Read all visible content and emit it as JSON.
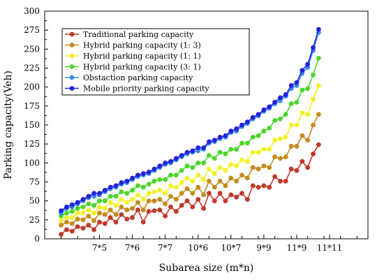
{
  "chart_data": {
    "type": "line",
    "xlabel": "Subarea size (m*n)",
    "ylabel": "Parking capacity(Veh)",
    "ylim": [
      0,
      300
    ],
    "yticks": [
      0,
      25,
      50,
      75,
      100,
      125,
      150,
      175,
      200,
      225,
      250,
      275,
      300
    ],
    "x_tick_labels": [
      "7*5",
      "7*6",
      "7*7",
      "10*6",
      "10*7",
      "9*9",
      "11*9",
      "11*11"
    ],
    "x_tick_positions": [
      7,
      13,
      19,
      25,
      31,
      37,
      43,
      49
    ],
    "x_range": [
      -3,
      56
    ],
    "legend_position": "top-left",
    "grid": false,
    "series": [
      {
        "name": "Traditional parking capacity",
        "color": "#c0392b",
        "values": [
          6,
          12,
          10,
          16,
          14,
          18,
          12,
          22,
          20,
          28,
          22,
          32,
          26,
          28,
          38,
          22,
          36,
          37,
          38,
          30,
          42,
          36,
          44,
          50,
          42,
          52,
          40,
          60,
          50,
          60,
          50,
          58,
          55,
          60,
          52,
          70,
          68,
          70,
          68,
          82,
          76,
          76,
          92,
          90,
          102,
          94,
          112,
          124
        ]
      },
      {
        "name": "Hybrid parking capacity (1: 3)",
        "color": "#c68a1e",
        "values": [
          18,
          22,
          20,
          26,
          25,
          30,
          24,
          34,
          32,
          38,
          32,
          42,
          38,
          40,
          48,
          38,
          50,
          50,
          52,
          46,
          56,
          52,
          60,
          66,
          60,
          68,
          58,
          76,
          68,
          76,
          70,
          80,
          76,
          84,
          80,
          94,
          92,
          96,
          94,
          108,
          106,
          108,
          122,
          122,
          136,
          130,
          150,
          164
        ]
      },
      {
        "name": "Hybrid parking capacity (1: 1)",
        "color": "#f1f12a",
        "values": [
          24,
          28,
          28,
          34,
          34,
          38,
          34,
          42,
          40,
          48,
          44,
          52,
          48,
          52,
          58,
          52,
          60,
          62,
          64,
          60,
          70,
          68,
          74,
          80,
          76,
          84,
          78,
          92,
          86,
          94,
          90,
          98,
          96,
          104,
          102,
          114,
          114,
          118,
          118,
          130,
          132,
          134,
          150,
          150,
          166,
          164,
          184,
          202
        ]
      },
      {
        "name": "Hybrid parking capacity (3: 1)",
        "color": "#4cd62b",
        "values": [
          30,
          34,
          36,
          40,
          42,
          46,
          44,
          50,
          50,
          56,
          56,
          62,
          60,
          64,
          70,
          68,
          72,
          76,
          78,
          78,
          84,
          84,
          90,
          96,
          94,
          100,
          100,
          110,
          106,
          114,
          112,
          118,
          118,
          126,
          126,
          134,
          136,
          142,
          146,
          156,
          158,
          164,
          178,
          180,
          196,
          198,
          216,
          238
        ]
      },
      {
        "name": "Obstaction parking capacity",
        "color": "#3a8ee8",
        "values": [
          34,
          40,
          42,
          46,
          50,
          54,
          56,
          58,
          62,
          66,
          68,
          72,
          74,
          78,
          82,
          84,
          86,
          90,
          94,
          98,
          100,
          104,
          108,
          112,
          114,
          116,
          118,
          126,
          128,
          132,
          134,
          140,
          142,
          148,
          152,
          158,
          162,
          168,
          172,
          178,
          182,
          188,
          198,
          202,
          218,
          226,
          248,
          272
        ]
      },
      {
        "name": "Mobile priority parking capacity",
        "color": "#2323d8",
        "values": [
          37,
          42,
          45,
          48,
          52,
          56,
          60,
          60,
          64,
          68,
          70,
          74,
          76,
          80,
          84,
          86,
          88,
          92,
          96,
          100,
          102,
          106,
          110,
          114,
          116,
          120,
          120,
          128,
          130,
          134,
          136,
          142,
          145,
          150,
          154,
          160,
          164,
          170,
          174,
          180,
          186,
          190,
          202,
          206,
          222,
          230,
          252,
          276
        ]
      }
    ]
  }
}
